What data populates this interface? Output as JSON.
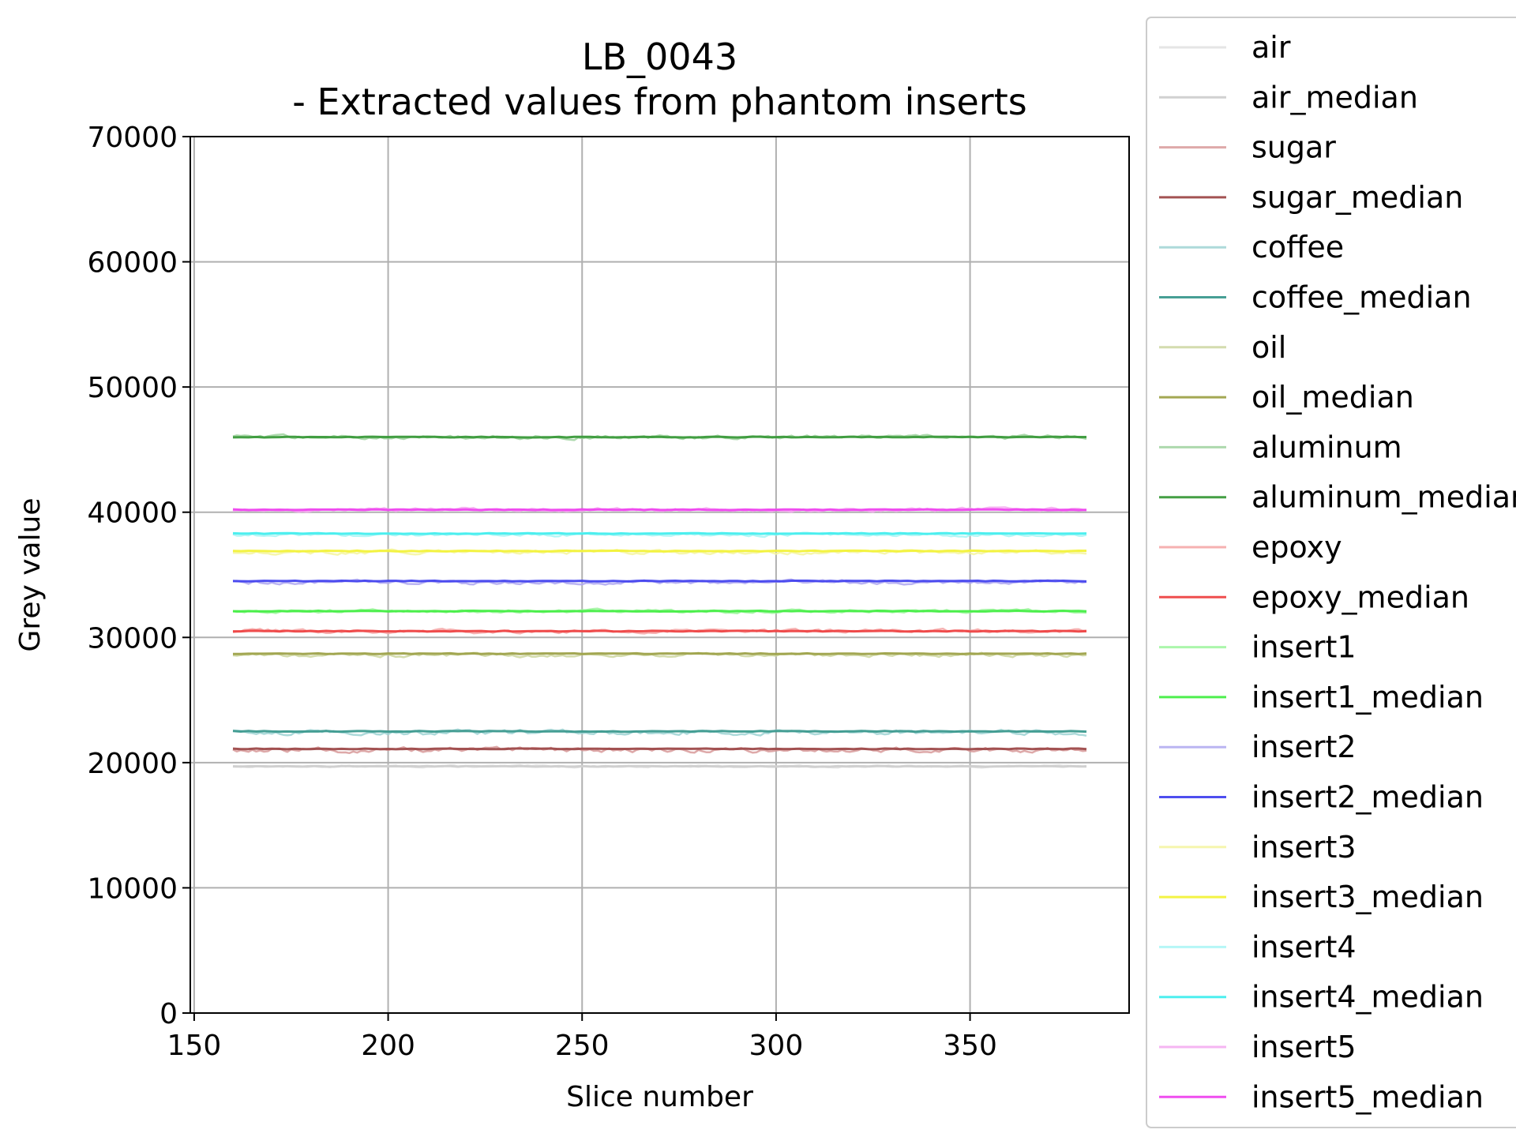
{
  "chart_data": {
    "type": "line",
    "title": "LB_0043",
    "subtitle": "- Extracted values from phantom inserts",
    "xlabel": "Slice number",
    "ylabel": "Grey value",
    "xlim": [
      149,
      391
    ],
    "ylim": [
      0,
      70000
    ],
    "x_ticks": [
      150,
      200,
      250,
      300,
      350
    ],
    "y_ticks": [
      0,
      10000,
      20000,
      30000,
      40000,
      50000,
      60000,
      70000
    ],
    "x_range": [
      160,
      380
    ],
    "grid": true,
    "legend_position": "outside right",
    "series": [
      {
        "name": "air",
        "kind": "raw",
        "level": 19700,
        "color": "#e0e0e0",
        "noise": 60
      },
      {
        "name": "air_median",
        "kind": "median",
        "level": 19700,
        "color": "#cfcfcf"
      },
      {
        "name": "sugar",
        "kind": "raw",
        "level": 21000,
        "color": "#d89a9a",
        "noise": 150
      },
      {
        "name": "sugar_median",
        "kind": "median",
        "level": 21100,
        "color": "#9e4a4a"
      },
      {
        "name": "coffee",
        "kind": "raw",
        "level": 22400,
        "color": "#9fd3d3",
        "noise": 150
      },
      {
        "name": "coffee_median",
        "kind": "median",
        "level": 22500,
        "color": "#3d9a8f"
      },
      {
        "name": "oil",
        "kind": "raw",
        "level": 28600,
        "color": "#cdd6a0",
        "noise": 120
      },
      {
        "name": "oil_median",
        "kind": "median",
        "level": 28700,
        "color": "#9ea24a"
      },
      {
        "name": "aluminum",
        "kind": "raw",
        "level": 46000,
        "color": "#9fd29f",
        "noise": 120
      },
      {
        "name": "aluminum_median",
        "kind": "median",
        "level": 46000,
        "color": "#3a9a3a"
      },
      {
        "name": "epoxy",
        "kind": "raw",
        "level": 30500,
        "color": "#f4a3a3",
        "noise": 120
      },
      {
        "name": "epoxy_median",
        "kind": "median",
        "level": 30500,
        "color": "#ee4444"
      },
      {
        "name": "insert1",
        "kind": "raw",
        "level": 32100,
        "color": "#9cf59c",
        "noise": 100
      },
      {
        "name": "insert1_median",
        "kind": "median",
        "level": 32100,
        "color": "#44ee44"
      },
      {
        "name": "insert2",
        "kind": "raw",
        "level": 34400,
        "color": "#afa8f0",
        "noise": 120
      },
      {
        "name": "insert2_median",
        "kind": "median",
        "level": 34500,
        "color": "#4444ee"
      },
      {
        "name": "insert3",
        "kind": "raw",
        "level": 36800,
        "color": "#f5f5a0",
        "noise": 120
      },
      {
        "name": "insert3_median",
        "kind": "median",
        "level": 36900,
        "color": "#f2f23a"
      },
      {
        "name": "insert4",
        "kind": "raw",
        "level": 38200,
        "color": "#a8f5f5",
        "noise": 100
      },
      {
        "name": "insert4_median",
        "kind": "median",
        "level": 38300,
        "color": "#44eeee"
      },
      {
        "name": "insert5",
        "kind": "raw",
        "level": 40200,
        "color": "#f5a8f0",
        "noise": 110
      },
      {
        "name": "insert5_median",
        "kind": "median",
        "level": 40200,
        "color": "#ee44ee"
      }
    ]
  }
}
